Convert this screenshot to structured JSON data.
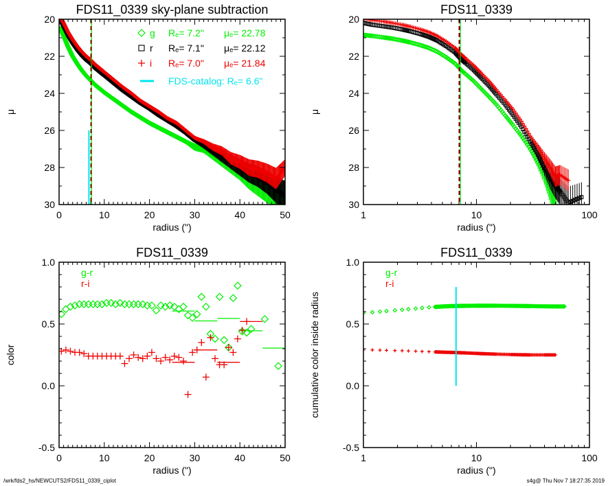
{
  "footer": {
    "path": "/wrk/fds2_hs/NEWCUTS2/FDS11_0339_ciplot",
    "stamp": "s4g@  Thu Nov  7 18:27:35 2019"
  },
  "colors": {
    "g": "#00ee00",
    "r": "#000000",
    "i": "#ee0000",
    "catalog": "#00e5ee",
    "axis": "#000000"
  },
  "chart_data": [
    {
      "id": "profile-linear",
      "type": "scatter",
      "title": "FDS11_0339 sky-plane subtraction",
      "xlabel": "radius (\")",
      "ylabel": "μ",
      "xscale": "linear",
      "xlim": [
        0,
        50
      ],
      "ylim": [
        30,
        20
      ],
      "xticks": [
        0,
        10,
        20,
        30,
        40,
        50
      ],
      "yticks": [
        20,
        22,
        24,
        26,
        28,
        30
      ],
      "legend": {
        "placement": "top-right",
        "entries": [
          {
            "band": "g",
            "symbol": "diamond",
            "label": "g",
            "re_text": "Rₑ=   7.2\"",
            "mue_text": "μₑ= 22.78",
            "color_key": "g"
          },
          {
            "band": "r",
            "symbol": "square",
            "label": "r",
            "re_text": "Rₑ=   7.1\"",
            "mue_text": "μₑ= 22.12",
            "color_key": "r"
          },
          {
            "band": "i",
            "symbol": "plus",
            "label": "i",
            "re_text": "Rₑ=   7.0\"",
            "mue_text": "μₑ= 21.84",
            "color_key": "i"
          }
        ],
        "catalog": {
          "label": "FDS-catalog: Rₑ=   6.6\"",
          "color_key": "catalog"
        }
      },
      "effective_radii": {
        "g": 7.2,
        "r": 7.1,
        "i": 7.0,
        "catalog": 6.6
      },
      "catalog_line_ylim": [
        30,
        26
      ],
      "series": [
        {
          "name": "g",
          "x": [
            0.3,
            1,
            2,
            3,
            4,
            5,
            6,
            7,
            8,
            9,
            10,
            12,
            14,
            16,
            18,
            20,
            22,
            24,
            26,
            28,
            30,
            32,
            34,
            36,
            38,
            40,
            42,
            44,
            46,
            48,
            50
          ],
          "y": [
            20.5,
            20.9,
            21.5,
            22.0,
            22.4,
            22.75,
            23.05,
            23.3,
            23.55,
            23.75,
            23.95,
            24.3,
            24.65,
            25.0,
            25.3,
            25.6,
            25.85,
            26.1,
            26.35,
            26.6,
            26.9,
            27.0,
            27.3,
            27.6,
            27.9,
            28.2,
            28.6,
            28.9,
            29.2,
            29.5,
            29.6
          ]
        },
        {
          "name": "r",
          "x": [
            0.3,
            1,
            2,
            3,
            4,
            5,
            6,
            7,
            8,
            9,
            10,
            12,
            14,
            16,
            18,
            20,
            22,
            24,
            26,
            28,
            30,
            32,
            34,
            36,
            38,
            40,
            42,
            44,
            46,
            48,
            50
          ],
          "y": [
            20.0,
            20.35,
            20.85,
            21.25,
            21.6,
            21.9,
            22.15,
            22.35,
            22.6,
            22.8,
            23.0,
            23.4,
            23.8,
            24.15,
            24.5,
            24.8,
            25.15,
            25.45,
            25.75,
            26.1,
            26.5,
            26.8,
            27.1,
            27.4,
            27.7,
            28.0,
            28.3,
            28.5,
            28.8,
            29.2,
            29.5
          ]
        },
        {
          "name": "i",
          "x": [
            0.3,
            1,
            2,
            3,
            4,
            5,
            6,
            7,
            8,
            9,
            10,
            12,
            14,
            16,
            18,
            20,
            22,
            24,
            26,
            28,
            30,
            32,
            34,
            36,
            38,
            40,
            42,
            44,
            46,
            48,
            50
          ],
          "y": [
            19.9,
            20.2,
            20.7,
            21.1,
            21.45,
            21.75,
            22.0,
            22.2,
            22.45,
            22.65,
            22.85,
            23.25,
            23.65,
            24.0,
            24.4,
            24.7,
            25.0,
            25.35,
            25.6,
            26.0,
            26.4,
            26.6,
            26.9,
            27.1,
            27.5,
            27.7,
            28.0,
            28.1,
            28.3,
            28.6,
            28.0
          ]
        }
      ]
    },
    {
      "id": "profile-log",
      "type": "scatter",
      "title": "FDS11_0339",
      "xlabel": "radius (\")",
      "ylabel": "μ",
      "xscale": "log",
      "xlim": [
        1,
        100
      ],
      "ylim": [
        30,
        20
      ],
      "xticks": [
        1,
        10,
        100
      ],
      "yticks": [
        20,
        22,
        24,
        26,
        28,
        30
      ],
      "effective_radii": {
        "g": 7.2,
        "r": 7.1,
        "i": 7.0
      },
      "series": [
        {
          "name": "g",
          "x": [
            1,
            1.2,
            1.5,
            1.8,
            2.2,
            2.6,
            3.2,
            3.8,
            4.5,
            5.4,
            6.5,
            7.2,
            8,
            9.5,
            11,
            13,
            15,
            18,
            21,
            25,
            30,
            35,
            40,
            45,
            50
          ],
          "y": [
            20.85,
            20.9,
            20.98,
            21.05,
            21.15,
            21.25,
            21.4,
            21.55,
            21.75,
            22.05,
            22.4,
            22.7,
            22.95,
            23.35,
            23.75,
            24.2,
            24.6,
            25.2,
            25.7,
            26.3,
            27.0,
            27.7,
            28.4,
            29.2,
            30.0
          ]
        },
        {
          "name": "r",
          "x": [
            1,
            1.2,
            1.5,
            1.8,
            2.2,
            2.6,
            3.2,
            3.8,
            4.5,
            5.4,
            6.5,
            7.2,
            8,
            9.5,
            11,
            13,
            15,
            18,
            21,
            25,
            30,
            35,
            40,
            45,
            50,
            55,
            65,
            85
          ],
          "y": [
            20.2,
            20.3,
            20.38,
            20.45,
            20.55,
            20.65,
            20.8,
            20.95,
            21.15,
            21.45,
            21.8,
            22.1,
            22.35,
            22.75,
            23.15,
            23.6,
            24.05,
            24.6,
            25.15,
            25.8,
            26.6,
            27.3,
            28.0,
            28.6,
            29.0,
            29.3,
            29.9,
            29.6
          ]
        },
        {
          "name": "i",
          "x": [
            1,
            1.2,
            1.5,
            1.8,
            2.2,
            2.6,
            3.2,
            3.8,
            4.5,
            5.4,
            6.5,
            7.2,
            8,
            9.5,
            11,
            13,
            15,
            18,
            21,
            25,
            30,
            35,
            40,
            45,
            50,
            55,
            65
          ],
          "y": [
            19.95,
            20.05,
            20.12,
            20.2,
            20.3,
            20.4,
            20.55,
            20.7,
            20.9,
            21.2,
            21.55,
            21.85,
            22.1,
            22.5,
            22.9,
            23.35,
            23.8,
            24.35,
            24.85,
            25.5,
            26.3,
            26.9,
            27.5,
            28.0,
            28.5,
            28.4,
            28.7
          ]
        }
      ]
    },
    {
      "id": "color-profile",
      "type": "scatter",
      "title": "FDS11_0339",
      "xlabel": "radius (\")",
      "ylabel": "color",
      "xscale": "linear",
      "xlim": [
        0,
        50
      ],
      "ylim": [
        -0.5,
        1.0
      ],
      "xticks": [
        0,
        10,
        20,
        30,
        40,
        50
      ],
      "yticks": [
        -0.5,
        0.0,
        0.5,
        1.0
      ],
      "yticklabels": [
        "-0.5",
        "0.0",
        "0.5",
        "1.0"
      ],
      "legend": {
        "placement": "top-left",
        "entries": [
          {
            "label": "g-r",
            "color_key": "g"
          },
          {
            "label": "r-i",
            "color_key": "i"
          }
        ]
      },
      "series": [
        {
          "name": "g-r",
          "x": [
            0.5,
            1.5,
            2.5,
            3.5,
            4.5,
            5.5,
            6.5,
            7.5,
            8.5,
            9.5,
            10.5,
            11.5,
            12.5,
            13.5,
            14.5,
            15.5,
            16.5,
            17.5,
            18.5,
            19.5,
            20.5,
            21.5,
            22.5,
            23.5,
            24.5,
            25.5,
            26.5,
            27.5,
            28.5,
            29.5,
            30.5,
            31.5,
            32.5,
            33.5,
            34.5,
            35.5,
            36.5,
            37.5,
            38.5,
            39.5,
            40.5,
            41.5,
            42.5,
            45.5,
            48.5
          ],
          "y": [
            0.58,
            0.62,
            0.64,
            0.65,
            0.66,
            0.66,
            0.66,
            0.66,
            0.66,
            0.66,
            0.67,
            0.67,
            0.66,
            0.67,
            0.66,
            0.66,
            0.66,
            0.66,
            0.66,
            0.65,
            0.65,
            0.61,
            0.65,
            0.64,
            0.65,
            0.64,
            0.62,
            0.64,
            0.57,
            0.55,
            0.58,
            0.72,
            0.64,
            0.42,
            0.38,
            0.72,
            0.37,
            0.31,
            0.71,
            0.81,
            0.44,
            0.43,
            0.46,
            0.54,
            0.16
          ]
        },
        {
          "name": "g-r-binned",
          "x_ranges": [
            [
              25,
              30
            ],
            [
              30,
              35
            ],
            [
              35,
              40
            ],
            [
              40,
              45
            ],
            [
              45,
              50
            ]
          ],
          "y": [
            0.605,
            0.525,
            0.545,
            0.445,
            0.305
          ]
        },
        {
          "name": "r-i",
          "x": [
            0.5,
            1.5,
            2.5,
            3.5,
            4.5,
            5.5,
            6.5,
            7.5,
            8.5,
            9.5,
            10.5,
            11.5,
            12.5,
            13.5,
            14.5,
            15.5,
            16.5,
            17.5,
            18.5,
            19.5,
            20.5,
            21.5,
            22.5,
            23.5,
            24.5,
            25.5,
            26.5,
            27.5,
            28.5,
            29.5,
            30.5,
            31.5,
            32.5,
            33.5,
            34.5,
            35.5,
            36.5,
            37.5,
            38.5,
            39.5,
            40.5,
            41.5
          ],
          "y": [
            0.28,
            0.29,
            0.28,
            0.27,
            0.27,
            0.26,
            0.24,
            0.24,
            0.24,
            0.24,
            0.24,
            0.24,
            0.24,
            0.24,
            0.18,
            0.22,
            0.25,
            0.23,
            0.22,
            0.24,
            0.27,
            0.22,
            0.2,
            0.23,
            0.21,
            0.24,
            0.23,
            0.2,
            -0.07,
            0.27,
            0.29,
            0.35,
            0.07,
            0.39,
            0.22,
            0.17,
            0.17,
            0.31,
            0.27,
            0.38,
            0.45,
            0.52
          ]
        },
        {
          "name": "r-i-binned",
          "x_ranges": [
            [
              25,
              30
            ],
            [
              30,
              35
            ],
            [
              35,
              40
            ],
            [
              40,
              45
            ]
          ],
          "y": [
            0.19,
            0.29,
            0.19,
            0.52
          ]
        }
      ]
    },
    {
      "id": "cumulative-color",
      "type": "scatter",
      "title": "FDS11_0339",
      "xlabel": "radius (\")",
      "ylabel": "cumulative color inside radius",
      "xscale": "log",
      "xlim": [
        1,
        100
      ],
      "ylim": [
        -0.5,
        1.0
      ],
      "xticks": [
        1,
        10,
        100
      ],
      "yticks": [
        -0.5,
        0.0,
        0.5,
        1.0
      ],
      "yticklabels": [
        "-0.5",
        "0.0",
        "0.5",
        "1.0"
      ],
      "legend": {
        "placement": "top-left",
        "entries": [
          {
            "label": "g-r",
            "color_key": "g"
          },
          {
            "label": "r-i",
            "color_key": "i"
          }
        ]
      },
      "catalog_radius": 6.6,
      "catalog_line_ylim": [
        0.0,
        0.8
      ],
      "series": [
        {
          "name": "g-r",
          "x": [
            1,
            1.2,
            1.4,
            1.6,
            1.9,
            2.2,
            2.5,
            2.9,
            3.3,
            3.8,
            4.3,
            5,
            6,
            7,
            8,
            10,
            12,
            15,
            20,
            25,
            30,
            40,
            50,
            60
          ],
          "y": [
            0.59,
            0.595,
            0.6,
            0.605,
            0.61,
            0.615,
            0.62,
            0.625,
            0.63,
            0.635,
            0.638,
            0.642,
            0.645,
            0.646,
            0.647,
            0.648,
            0.648,
            0.648,
            0.647,
            0.646,
            0.645,
            0.643,
            0.642,
            0.642
          ]
        },
        {
          "name": "r-i",
          "x": [
            1,
            1.2,
            1.4,
            1.6,
            1.9,
            2.2,
            2.5,
            2.9,
            3.3,
            3.8,
            4.3,
            5,
            6,
            7,
            8,
            10,
            12,
            15,
            20,
            25,
            30,
            40,
            50
          ],
          "y": [
            0.29,
            0.29,
            0.288,
            0.287,
            0.285,
            0.284,
            0.282,
            0.28,
            0.278,
            0.276,
            0.274,
            0.272,
            0.27,
            0.268,
            0.266,
            0.262,
            0.259,
            0.256,
            0.253,
            0.251,
            0.25,
            0.25,
            0.25
          ]
        }
      ]
    }
  ]
}
